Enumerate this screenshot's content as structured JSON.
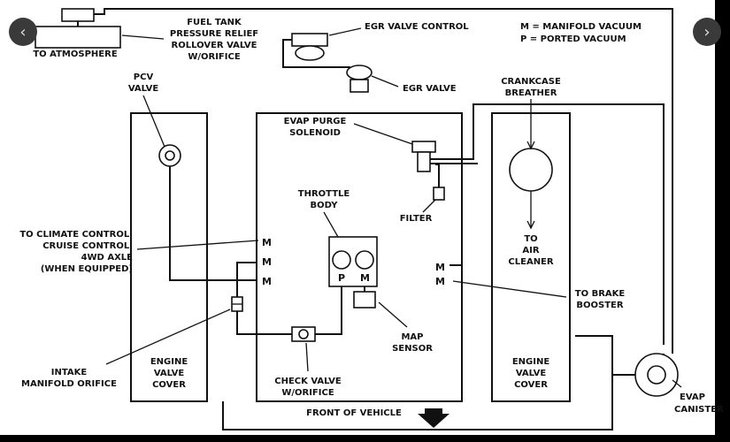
{
  "diagram": {
    "labels": {
      "fuel_tank_valve": [
        "FUEL TANK",
        "PRESSURE RELIEF",
        "ROLLOVER VALVE",
        "W/ORIFICE"
      ],
      "to_atmosphere": "TO ATMOSPHERE",
      "egr_valve_control": "EGR VALVE CONTROL",
      "egr_valve": "EGR VALVE",
      "legend_m": "M  =  MANIFOLD VACUUM",
      "legend_p": "P  =  PORTED VACUUM",
      "pcv_valve": [
        "PCV",
        "VALVE"
      ],
      "crankcase_breather": [
        "CRANKCASE",
        "BREATHER"
      ],
      "evap_purge_solenoid": [
        "EVAP PURGE",
        "SOLENOID"
      ],
      "throttle_body": [
        "THROTTLE",
        "BODY"
      ],
      "filter": "FILTER",
      "to_air_cleaner": [
        "TO",
        "AIR",
        "CLEANER"
      ],
      "climate_control": [
        "TO CLIMATE CONTROL,",
        "CRUISE CONTROL,",
        "4WD AXLE",
        "(WHEN EQUIPPED)"
      ],
      "to_brake_booster": [
        "TO BRAKE",
        "BOOSTER"
      ],
      "map_sensor": [
        "MAP",
        "SENSOR"
      ],
      "intake_manifold_orifice": [
        "INTAKE",
        "MANIFOLD ORIFICE"
      ],
      "engine_valve_cover_left": [
        "ENGINE",
        "VALVE",
        "COVER"
      ],
      "engine_valve_cover_right": [
        "ENGINE",
        "VALVE",
        "COVER"
      ],
      "check_valve": [
        "CHECK VALVE",
        "W/ORIFICE"
      ],
      "front_of_vehicle": "FRONT OF VEHICLE",
      "evap_canister": [
        "EVAP",
        "CANISTER"
      ],
      "port_m": "M",
      "port_p": "P"
    }
  },
  "nav": {
    "prev_icon": "‹",
    "next_icon": "›"
  }
}
